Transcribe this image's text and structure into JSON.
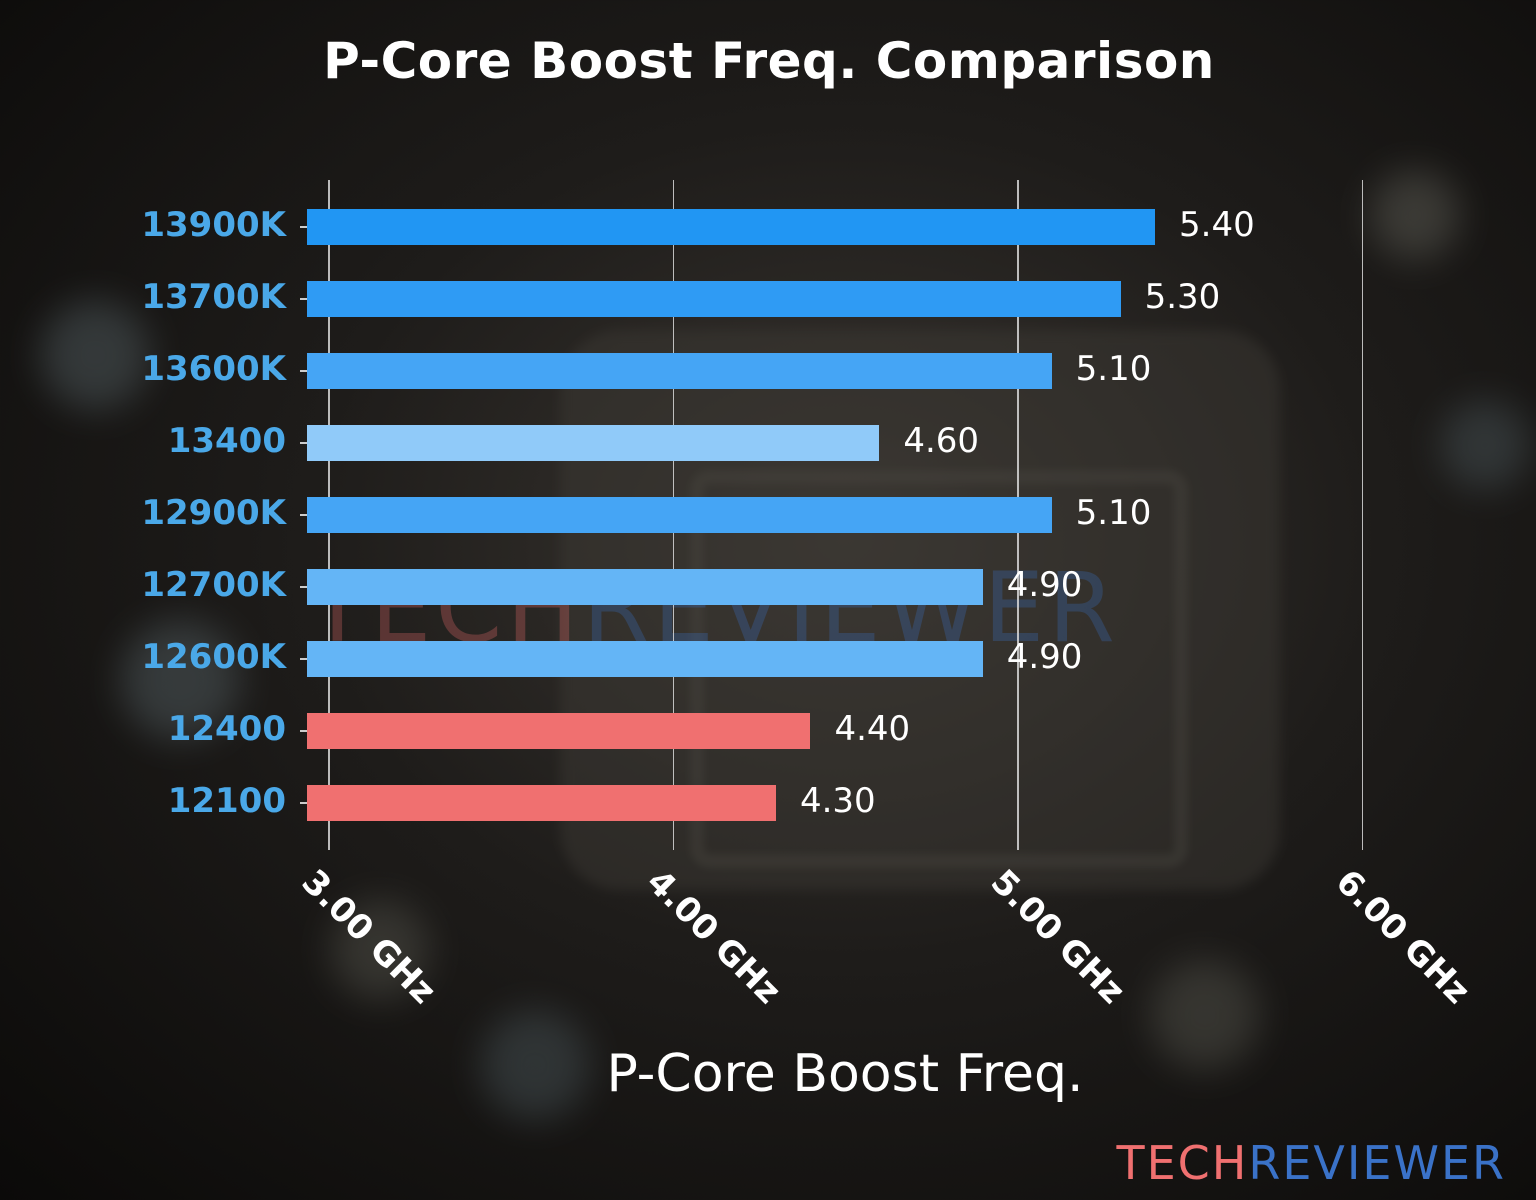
{
  "chart_data": {
    "type": "bar",
    "orientation": "horizontal",
    "title": "P-Core Boost Freq. Comparison",
    "xlabel": "P-Core Boost Freq.",
    "ylabel": "",
    "xlim": [
      2.94,
      6.0
    ],
    "xticks": [
      3.0,
      4.0,
      5.0,
      6.0
    ],
    "xtick_labels": [
      "3.00 GHz",
      "4.00 GHz",
      "5.00 GHz",
      "6.00 GHz"
    ],
    "grid": "vertical",
    "legend": null,
    "categories": [
      "13900K",
      "13700K",
      "13600K",
      "13400",
      "12900K",
      "12700K",
      "12600K",
      "12400",
      "12100"
    ],
    "values": [
      5.4,
      5.3,
      5.1,
      4.6,
      5.1,
      4.9,
      4.9,
      4.4,
      4.3
    ],
    "value_labels": [
      "5.40",
      "5.30",
      "5.10",
      "4.60",
      "5.10",
      "4.90",
      "4.90",
      "4.40",
      "4.30"
    ],
    "bar_colors": [
      "#2196f3",
      "#2f9bf4",
      "#45a5f5",
      "#90caf9",
      "#45a5f5",
      "#64b5f6",
      "#64b5f6",
      "#f07070",
      "#f07070"
    ],
    "ytick_label_color": "#4aa8e8"
  },
  "watermark": {
    "part1": "TECH",
    "part2": "REVIEWER",
    "color1": "#f07070",
    "color2": "#3a72c8"
  },
  "brand": {
    "part1": "TECH",
    "part2": "REVIEWER",
    "color1": "#f07070",
    "color2": "#3a72c8"
  }
}
